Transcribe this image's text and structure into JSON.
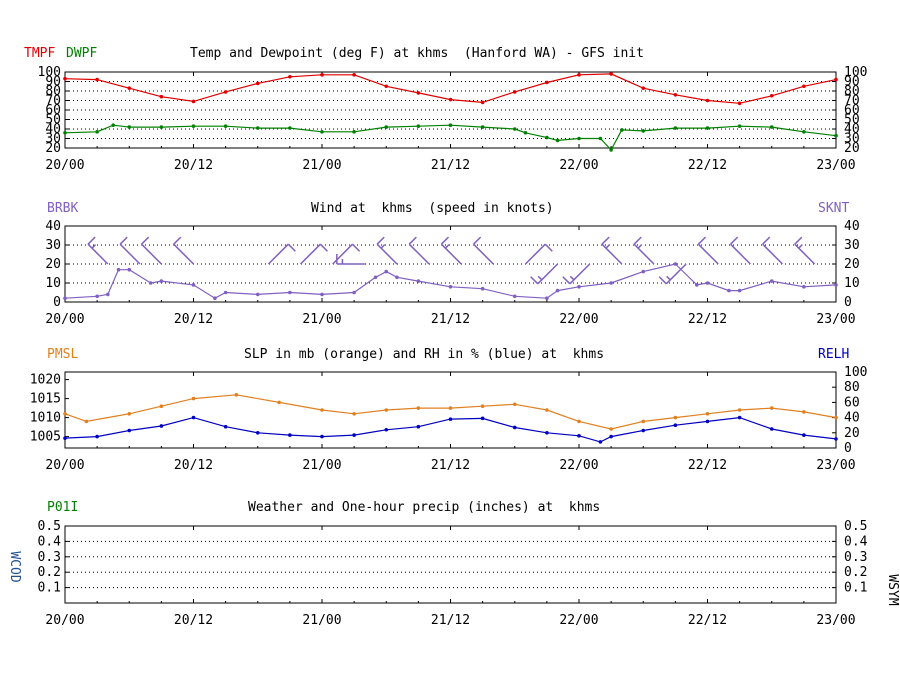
{
  "colors": {
    "temperature": "#e00000",
    "dewpoint": "#008000",
    "wind": "#8060c0",
    "pressure": "#e08020",
    "humidity": "#0000c0",
    "precip": "#008000",
    "wcod": "#205090",
    "text": "#000000"
  },
  "panel1": {
    "label_temp": "TMPF",
    "label_dew": "DWPF",
    "title": "Temp and Dewpoint (deg F) at khms  (Hanford WA) - GFS init"
  },
  "panel2": {
    "label_left": "BRBK",
    "label_right": "SKNT",
    "title": "Wind at  khms  (speed in knots)"
  },
  "panel3": {
    "label_left": "PMSL",
    "label_right": "RELH",
    "title": "SLP in mb (orange) and RH in % (blue) at  khms"
  },
  "panel4": {
    "label_left": "P01I",
    "title": "Weather and One-hour precip (inches) at  khms",
    "label_wcod": "WCOD",
    "label_wsym": "WSYM"
  },
  "chart_data": [
    {
      "type": "line",
      "title": "Temp and Dewpoint (deg F) at khms  (Hanford WA) - GFS init",
      "x_ticks": [
        "20/00",
        "20/12",
        "21/00",
        "21/12",
        "22/00",
        "22/12",
        "23/00"
      ],
      "x_range_hours": [
        0,
        72
      ],
      "ylim": [
        20,
        100
      ],
      "y_ticks": [
        20,
        30,
        40,
        50,
        60,
        70,
        80,
        90,
        100
      ],
      "grid": true,
      "series": [
        {
          "name": "TMPF",
          "x": [
            0,
            3,
            6,
            9,
            12,
            15,
            18,
            21,
            24,
            27,
            30,
            33,
            36,
            39,
            42,
            45,
            48,
            51,
            54,
            57,
            60,
            63,
            66,
            69,
            72
          ],
          "values": [
            93,
            92,
            83,
            74,
            69,
            79,
            88,
            95,
            97,
            97,
            85,
            78,
            71,
            68,
            79,
            89,
            97,
            98,
            83,
            76,
            70,
            67,
            75,
            85,
            92
          ]
        },
        {
          "name": "DWPF",
          "x": [
            0,
            3,
            4.5,
            6,
            9,
            12,
            15,
            18,
            21,
            24,
            27,
            30,
            33,
            36,
            39,
            42,
            43,
            45,
            46,
            48,
            50,
            51,
            52,
            54,
            57,
            60,
            63,
            66,
            69,
            72
          ],
          "values": [
            36,
            37,
            44,
            42,
            42,
            43,
            43,
            41,
            41,
            37,
            37,
            42,
            43,
            44,
            42,
            40,
            36,
            31,
            28,
            30,
            30,
            18,
            39,
            38,
            41,
            41,
            43,
            42,
            37,
            33
          ]
        }
      ]
    },
    {
      "type": "line",
      "title": "Wind at  khms  (speed in knots)",
      "x_ticks": [
        "20/00",
        "20/12",
        "21/00",
        "21/12",
        "22/00",
        "22/12",
        "23/00"
      ],
      "x_range_hours": [
        0,
        72
      ],
      "ylim": [
        0,
        40
      ],
      "y_ticks": [
        0,
        10,
        20,
        30,
        40
      ],
      "grid": true,
      "series": [
        {
          "name": "SKNT",
          "x": [
            0,
            3,
            4,
            5,
            6,
            8,
            9,
            12,
            14,
            15,
            18,
            21,
            24,
            27,
            29,
            30,
            31,
            33,
            36,
            39,
            42,
            45,
            46,
            48,
            51,
            54,
            57,
            59,
            60,
            62,
            63,
            66,
            69,
            72
          ],
          "values": [
            2,
            3,
            4,
            17,
            17,
            10,
            11,
            9,
            2,
            5,
            4,
            5,
            4,
            5,
            13,
            16,
            13,
            11,
            8,
            7,
            3,
            2,
            6,
            8,
            10,
            16,
            20,
            9,
            10,
            6,
            6,
            11,
            8,
            9
          ]
        }
      ],
      "barbs": [
        {
          "x": 4,
          "dir": "NW",
          "speed": 15
        },
        {
          "x": 7,
          "dir": "NW",
          "speed": 10
        },
        {
          "x": 9,
          "dir": "NW",
          "speed": 10
        },
        {
          "x": 12,
          "dir": "NW",
          "speed": 10
        },
        {
          "x": 19,
          "dir": "NE",
          "speed": 10
        },
        {
          "x": 22,
          "dir": "NE",
          "speed": 10
        },
        {
          "x": 25,
          "dir": "NE",
          "speed": 10
        },
        {
          "x": 28,
          "dir": "W",
          "speed": 15
        },
        {
          "x": 31,
          "dir": "NW",
          "speed": 15
        },
        {
          "x": 34,
          "dir": "NW",
          "speed": 10
        },
        {
          "x": 37,
          "dir": "NW",
          "speed": 15
        },
        {
          "x": 40,
          "dir": "NW",
          "speed": 10
        },
        {
          "x": 43,
          "dir": "NE",
          "speed": 10
        },
        {
          "x": 46,
          "dir": "SW",
          "speed": 15
        },
        {
          "x": 49,
          "dir": "SW",
          "speed": 15
        },
        {
          "x": 52,
          "dir": "NW",
          "speed": 15
        },
        {
          "x": 55,
          "dir": "NW",
          "speed": 15
        },
        {
          "x": 58,
          "dir": "SW",
          "speed": 15
        },
        {
          "x": 61,
          "dir": "NW",
          "speed": 10
        },
        {
          "x": 64,
          "dir": "NW",
          "speed": 10
        },
        {
          "x": 67,
          "dir": "NW",
          "speed": 10
        },
        {
          "x": 70,
          "dir": "NW",
          "speed": 15
        }
      ]
    },
    {
      "type": "line",
      "title": "SLP in mb (orange) and RH in % (blue) at  khms",
      "x_ticks": [
        "20/00",
        "20/12",
        "21/00",
        "21/12",
        "22/00",
        "22/12",
        "23/00"
      ],
      "x_range_hours": [
        0,
        72
      ],
      "ylim_left": [
        1002,
        1022
      ],
      "y_ticks_left": [
        1005,
        1010,
        1015,
        1020
      ],
      "ylim_right": [
        0,
        100
      ],
      "y_ticks_right": [
        0,
        20,
        40,
        60,
        80,
        100
      ],
      "grid": true,
      "series": [
        {
          "name": "PMSL",
          "axis": "left",
          "x": [
            0,
            2,
            6,
            9,
            12,
            16,
            20,
            24,
            27,
            30,
            33,
            36,
            39,
            42,
            45,
            48,
            51,
            54,
            57,
            60,
            63,
            66,
            69,
            72
          ],
          "values": [
            1011,
            1009,
            1011,
            1013,
            1015,
            1016,
            1014,
            1012,
            1011,
            1012,
            1012.5,
            1012.5,
            1013,
            1013.5,
            1012,
            1009,
            1007,
            1009,
            1010,
            1011,
            1012,
            1012.5,
            1011.5,
            1010
          ]
        },
        {
          "name": "RELH",
          "axis": "right",
          "x": [
            0,
            3,
            6,
            9,
            12,
            15,
            18,
            21,
            24,
            27,
            30,
            33,
            36,
            39,
            42,
            45,
            48,
            50,
            51,
            54,
            57,
            60,
            63,
            66,
            69,
            72
          ],
          "values": [
            13,
            15,
            23,
            29,
            40,
            28,
            20,
            17,
            15,
            17,
            24,
            28,
            38,
            39,
            27,
            20,
            16,
            8,
            15,
            23,
            30,
            35,
            40,
            25,
            17,
            12
          ]
        }
      ]
    },
    {
      "type": "line",
      "title": "Weather and One-hour precip (inches) at  khms",
      "x_ticks": [
        "20/00",
        "20/12",
        "21/00",
        "21/12",
        "22/00",
        "22/12",
        "23/00"
      ],
      "x_range_hours": [
        0,
        72
      ],
      "ylim": [
        0,
        0.5
      ],
      "y_ticks": [
        0.1,
        0.2,
        0.3,
        0.4,
        0.5
      ],
      "grid": true,
      "series": []
    }
  ]
}
